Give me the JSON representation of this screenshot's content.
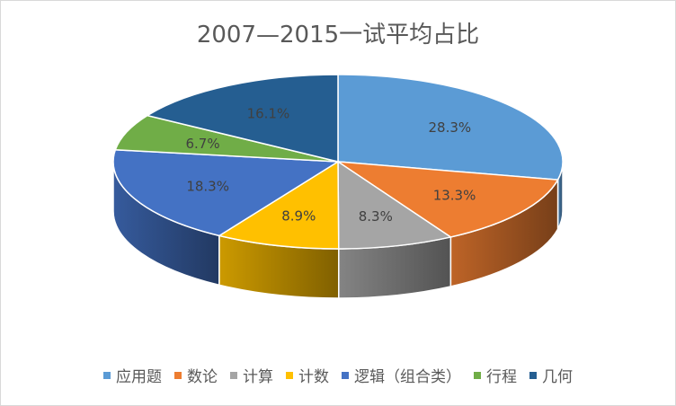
{
  "chart_data": {
    "type": "pie",
    "title": "2007—2015一试平均占比",
    "categories": [
      "应用题",
      "数论",
      "计算",
      "计数",
      "逻辑（组合类）",
      "行程",
      "几何"
    ],
    "values": [
      28.3,
      13.3,
      8.3,
      8.9,
      18.3,
      6.7,
      16.1
    ],
    "labels": [
      "28.3%",
      "13.3%",
      "8.3%",
      "8.9%",
      "18.3%",
      "6.7%",
      "16.1%"
    ],
    "colors": [
      "#5b9bd5",
      "#ed7d31",
      "#a5a5a5",
      "#ffc000",
      "#4472c4",
      "#70ad47",
      "#255e91"
    ],
    "legend_position": "bottom"
  }
}
